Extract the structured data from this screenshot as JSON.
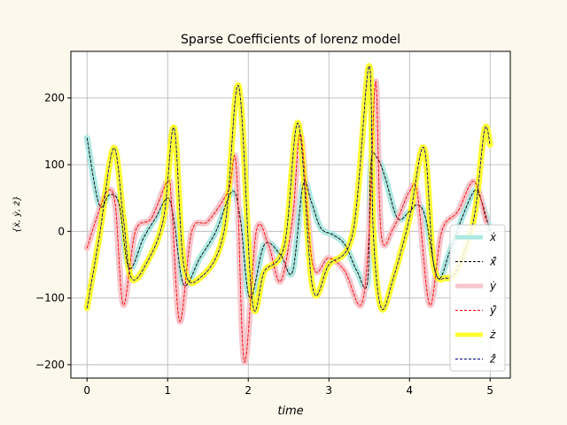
{
  "chart_data": {
    "type": "line",
    "title": "Sparse Coefficients of lorenz model",
    "xlabel": "time",
    "ylabel": "{ẋ, ẏ, ż}",
    "xlim": [
      -0.2,
      5.25
    ],
    "ylim": [
      -220,
      270
    ],
    "xticks": [
      0,
      1,
      2,
      3,
      4,
      5
    ],
    "yticks": [
      -200,
      -100,
      0,
      100,
      200
    ],
    "grid": true,
    "legend_position": "lower-right",
    "legend": [
      "ẋ",
      "ẋ̂",
      "ẏ",
      "ẏ̂",
      "ż",
      "ż̂"
    ],
    "colors": {
      "x_true": "#aee8e2",
      "x_pred": "#000000",
      "y_true": "#f7c6cc",
      "y_pred": "#ff0000",
      "z_true": "#ffff33",
      "z_pred": "#000080"
    },
    "series": [
      {
        "name": "ẋ",
        "x": [
          0,
          0.15,
          0.28,
          0.4,
          0.52,
          0.7,
          0.85,
          1.0,
          1.08,
          1.2,
          1.4,
          1.6,
          1.8,
          1.9,
          2.02,
          2.2,
          2.4,
          2.55,
          2.68,
          2.78,
          2.9,
          3.05,
          3.2,
          3.35,
          3.48,
          3.52,
          3.6,
          3.7,
          3.85,
          4.0,
          4.1,
          4.2,
          4.35,
          4.5,
          4.65,
          4.8,
          4.88,
          5.0
        ],
        "y": [
          140,
          40,
          55,
          40,
          -55,
          -10,
          20,
          50,
          15,
          -80,
          -40,
          0,
          60,
          20,
          -100,
          -20,
          -35,
          -60,
          70,
          45,
          5,
          -5,
          -20,
          -60,
          -75,
          100,
          110,
          80,
          20,
          30,
          40,
          20,
          -70,
          -30,
          20,
          60,
          50,
          0
        ]
      },
      {
        "name": "ẋ̂",
        "x": [
          0,
          0.15,
          0.28,
          0.4,
          0.52,
          0.7,
          0.85,
          1.0,
          1.08,
          1.2,
          1.4,
          1.6,
          1.8,
          1.9,
          2.02,
          2.2,
          2.4,
          2.55,
          2.68,
          2.78,
          2.9,
          3.05,
          3.2,
          3.35,
          3.48,
          3.52,
          3.6,
          3.7,
          3.85,
          4.0,
          4.1,
          4.2,
          4.35,
          4.5,
          4.65,
          4.8,
          4.88,
          5.0
        ],
        "y": [
          140,
          40,
          55,
          40,
          -55,
          -10,
          20,
          50,
          15,
          -80,
          -40,
          0,
          60,
          20,
          -100,
          -20,
          -35,
          -60,
          70,
          45,
          5,
          -5,
          -20,
          -60,
          -75,
          100,
          110,
          80,
          20,
          30,
          40,
          20,
          -70,
          -30,
          20,
          60,
          50,
          0
        ]
      },
      {
        "name": "ẏ",
        "x": [
          0,
          0.12,
          0.25,
          0.35,
          0.45,
          0.6,
          0.8,
          1.0,
          1.05,
          1.15,
          1.3,
          1.5,
          1.75,
          1.85,
          1.95,
          2.1,
          2.25,
          2.4,
          2.55,
          2.65,
          2.8,
          3.0,
          3.2,
          3.4,
          3.5,
          3.58,
          3.65,
          3.8,
          4.0,
          4.1,
          4.25,
          4.4,
          4.6,
          4.8,
          4.95
        ],
        "y": [
          -25,
          20,
          60,
          40,
          -110,
          0,
          20,
          75,
          40,
          -135,
          0,
          15,
          60,
          100,
          -195,
          0,
          -20,
          -75,
          20,
          145,
          -50,
          -40,
          -60,
          -110,
          0,
          225,
          -5,
          5,
          60,
          55,
          -110,
          0,
          30,
          75,
          15
        ]
      },
      {
        "name": "ẏ̂",
        "x": [
          0,
          0.12,
          0.25,
          0.35,
          0.45,
          0.6,
          0.8,
          1.0,
          1.05,
          1.15,
          1.3,
          1.5,
          1.75,
          1.85,
          1.95,
          2.1,
          2.25,
          2.4,
          2.55,
          2.65,
          2.8,
          3.0,
          3.2,
          3.4,
          3.5,
          3.58,
          3.65,
          3.8,
          4.0,
          4.1,
          4.25,
          4.4,
          4.6,
          4.8,
          4.95
        ],
        "y": [
          -25,
          20,
          60,
          40,
          -110,
          0,
          20,
          75,
          40,
          -135,
          0,
          15,
          60,
          100,
          -195,
          0,
          -20,
          -75,
          20,
          145,
          -50,
          -40,
          -60,
          -110,
          0,
          225,
          -5,
          5,
          60,
          55,
          -110,
          0,
          30,
          75,
          15
        ]
      },
      {
        "name": "ż",
        "x": [
          0,
          0.15,
          0.33,
          0.45,
          0.55,
          0.75,
          0.95,
          1.08,
          1.2,
          1.4,
          1.7,
          1.88,
          2.05,
          2.2,
          2.45,
          2.62,
          2.8,
          3.0,
          3.3,
          3.5,
          3.55,
          3.65,
          3.8,
          4.0,
          4.18,
          4.3,
          4.45,
          4.6,
          4.8,
          4.93,
          5.0
        ],
        "y": [
          -115,
          -10,
          125,
          20,
          -70,
          -45,
          20,
          155,
          -50,
          -70,
          0,
          218,
          -105,
          -60,
          -20,
          162,
          -85,
          -50,
          0,
          248,
          0,
          -115,
          -70,
          20,
          125,
          -50,
          -70,
          -55,
          20,
          152,
          130
        ]
      },
      {
        "name": "ż̂",
        "x": [
          0,
          0.15,
          0.33,
          0.45,
          0.55,
          0.75,
          0.95,
          1.08,
          1.2,
          1.4,
          1.7,
          1.88,
          2.05,
          2.2,
          2.45,
          2.62,
          2.8,
          3.0,
          3.3,
          3.5,
          3.55,
          3.65,
          3.8,
          4.0,
          4.18,
          4.3,
          4.45,
          4.6,
          4.8,
          4.93,
          5.0
        ],
        "y": [
          -115,
          -10,
          125,
          20,
          -70,
          -45,
          20,
          155,
          -50,
          -70,
          0,
          218,
          -105,
          -60,
          -20,
          162,
          -85,
          -50,
          0,
          248,
          0,
          -115,
          -70,
          20,
          125,
          -50,
          -70,
          -55,
          20,
          152,
          130
        ]
      }
    ]
  }
}
